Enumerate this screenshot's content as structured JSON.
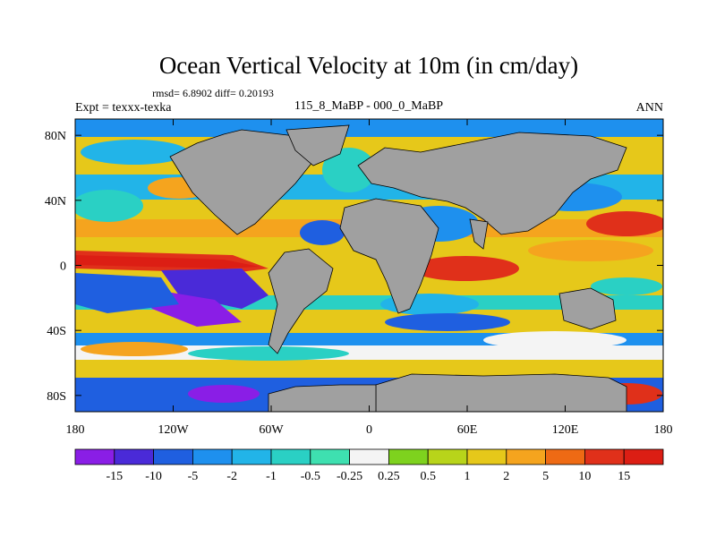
{
  "title": "Ocean Vertical Velocity at 10m (in cm/day)",
  "stats": "rmsd= 6.8902 diff= 0.20193",
  "left_label": "Expt = texxx-texka",
  "center_label": "115_8_MaBP - 000_0_MaBP",
  "right_label": "ANN",
  "lat_labels": [
    "80N",
    "40N",
    "0",
    "40S",
    "80S"
  ],
  "lat_values": [
    80,
    40,
    0,
    -40,
    -80
  ],
  "lon_labels": [
    "180",
    "120W",
    "60W",
    "0",
    "60E",
    "120E",
    "180"
  ],
  "lon_values": [
    -180,
    -120,
    -60,
    0,
    60,
    120,
    180
  ],
  "colorbar": {
    "labels": [
      "-15",
      "-10",
      "-5",
      "-2",
      "-1",
      "-0.5",
      "-0.25",
      "0.25",
      "0.5",
      "1",
      "2",
      "5",
      "10",
      "15"
    ],
    "colors": [
      "#8a1ee6",
      "#4a2ad8",
      "#1f5fe0",
      "#1e90ee",
      "#22b4e8",
      "#2ad0c4",
      "#3ee0b0",
      "#f4f4f4",
      "#7ed21e",
      "#b8d41a",
      "#e6c81a",
      "#f5a41e",
      "#ee6a14",
      "#e0301a",
      "#dc1e14"
    ]
  },
  "colors": {
    "land": "#a0a0a0",
    "outline": "#000000"
  }
}
